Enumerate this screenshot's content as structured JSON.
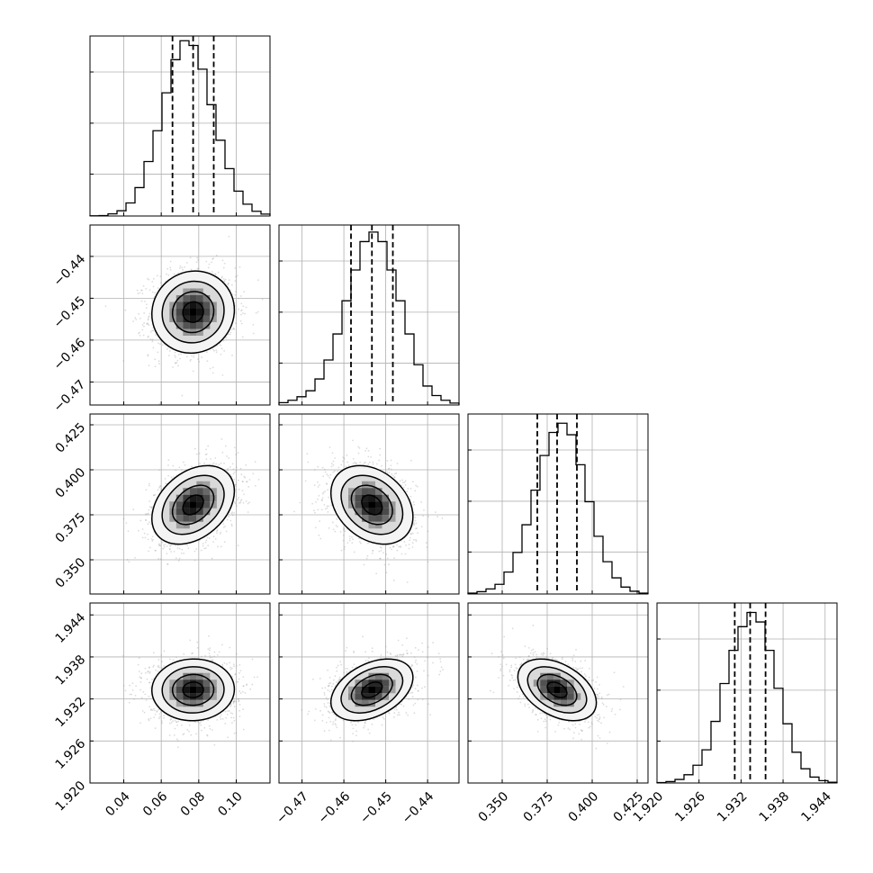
{
  "chart_data": {
    "type": "corner",
    "grid": true,
    "legend": "none",
    "parameters": [
      {
        "index": 0,
        "range": [
          0.022,
          0.118
        ],
        "ticks": [
          0.04,
          0.06,
          0.08,
          0.1
        ],
        "tick_labels": [
          "0.04",
          "0.06",
          "0.08",
          "0.10"
        ],
        "mean": 0.077,
        "sigma": 0.011,
        "quantiles": [
          0.066,
          0.077,
          0.088
        ]
      },
      {
        "index": 1,
        "range": [
          -0.4755,
          -0.4325
        ],
        "ticks": [
          -0.47,
          -0.46,
          -0.45,
          -0.44
        ],
        "tick_labels": [
          "−0.47",
          "−0.46",
          "−0.45",
          "−0.44"
        ],
        "mean": -0.4533,
        "sigma": 0.0049,
        "quantiles": [
          -0.4583,
          -0.4533,
          -0.4483
        ]
      },
      {
        "index": 2,
        "range": [
          0.331,
          0.431
        ],
        "ticks": [
          0.35,
          0.375,
          0.4,
          0.425
        ],
        "tick_labels": [
          "0.350",
          "0.375",
          "0.400",
          "0.425"
        ],
        "mean": 0.3805,
        "sigma": 0.0109,
        "quantiles": [
          0.3695,
          0.3805,
          0.3915
        ]
      },
      {
        "index": 3,
        "range": [
          1.92,
          1.9457
        ],
        "ticks": [
          1.92,
          1.926,
          1.932,
          1.938,
          1.944
        ],
        "tick_labels": [
          "1.920",
          "1.926",
          "1.932",
          "1.938",
          "1.944"
        ],
        "mean": 1.9333,
        "sigma": 0.0022,
        "quantiles": [
          1.9311,
          1.9333,
          1.9355
        ]
      }
    ],
    "histograms": [
      {
        "param": 0,
        "bin_edges": [
          0.022,
          0.0268,
          0.0316,
          0.0364,
          0.0412,
          0.046,
          0.0508,
          0.0556,
          0.0604,
          0.0652,
          0.07,
          0.0748,
          0.0796,
          0.0844,
          0.0892,
          0.094,
          0.0988,
          0.1036,
          0.1084,
          0.1132,
          0.118
        ],
        "counts": [
          1,
          2,
          9,
          22,
          55,
          120,
          230,
          360,
          520,
          660,
          740,
          720,
          620,
          470,
          320,
          200,
          105,
          50,
          20,
          8
        ],
        "ylim": [
          0,
          760
        ]
      },
      {
        "param": 1,
        "bin_edges": [
          -0.4755,
          -0.47335,
          -0.4712,
          -0.46905,
          -0.4669,
          -0.46475,
          -0.4626,
          -0.46045,
          -0.4583,
          -0.45615,
          -0.454,
          -0.45185,
          -0.4497,
          -0.44755,
          -0.4454,
          -0.44325,
          -0.4411,
          -0.43895,
          -0.4368,
          -0.43465,
          -0.4325
        ],
        "counts": [
          10,
          20,
          35,
          60,
          110,
          190,
          300,
          440,
          570,
          690,
          730,
          690,
          570,
          440,
          300,
          170,
          80,
          40,
          20,
          8
        ],
        "ylim": [
          0,
          760
        ]
      },
      {
        "param": 2,
        "bin_edges": [
          0.331,
          0.336,
          0.341,
          0.346,
          0.351,
          0.356,
          0.361,
          0.366,
          0.371,
          0.376,
          0.381,
          0.386,
          0.391,
          0.396,
          0.401,
          0.406,
          0.411,
          0.416,
          0.421,
          0.426,
          0.431
        ],
        "counts": [
          4,
          10,
          22,
          42,
          95,
          180,
          300,
          450,
          600,
          700,
          740,
          690,
          560,
          400,
          250,
          140,
          70,
          30,
          12,
          4
        ],
        "ylim": [
          0,
          780
        ]
      },
      {
        "param": 3,
        "bin_edges": [
          1.92,
          1.921285,
          1.92257,
          1.923855,
          1.92514,
          1.926425,
          1.92771,
          1.928995,
          1.93028,
          1.931565,
          1.93285,
          1.934135,
          1.93542,
          1.936705,
          1.93799,
          1.939275,
          1.94056,
          1.941845,
          1.94313,
          1.944415,
          1.9457
        ],
        "counts": [
          2,
          6,
          15,
          35,
          75,
          140,
          260,
          420,
          560,
          660,
          720,
          680,
          560,
          400,
          250,
          130,
          60,
          25,
          10,
          3
        ],
        "ylim": [
          0,
          760
        ]
      }
    ],
    "pairs": [
      {
        "x": 0,
        "y": 1,
        "correlation": 0.05
      },
      {
        "x": 0,
        "y": 2,
        "correlation": 0.35
      },
      {
        "x": 1,
        "y": 2,
        "correlation": -0.3
      },
      {
        "x": 0,
        "y": 3,
        "correlation": 0.02
      },
      {
        "x": 1,
        "y": 3,
        "correlation": 0.4
      },
      {
        "x": 2,
        "y": 3,
        "correlation": -0.42
      }
    ],
    "contour_levels_sigma": [
      0.5,
      1.0,
      1.5,
      2.0
    ]
  }
}
